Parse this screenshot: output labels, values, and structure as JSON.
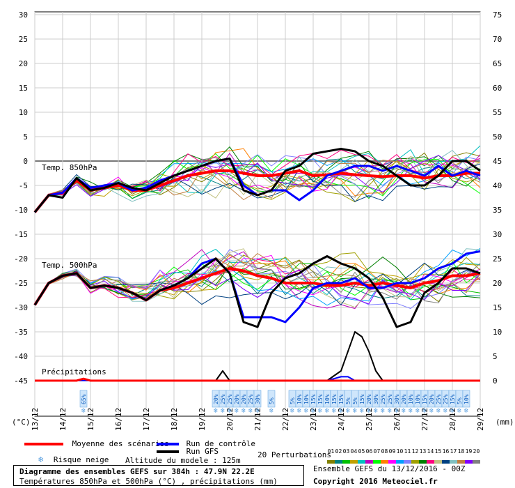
{
  "chart_data": {
    "type": "line",
    "title": "Diagramme des ensembles GEFS sur 384h : 47.9N 22.2E",
    "subtitle": "Températures 850hPa et 500hPa (°C) , précipitations (mm)",
    "left_axis_unit": "(°C)",
    "right_axis_unit": "(mm)",
    "left_ticks": [
      "30",
      "25",
      "20",
      "15",
      "10",
      "5",
      "0",
      "-5",
      "-10",
      "-15",
      "-20",
      "-25",
      "-30",
      "-35",
      "-40",
      "-45"
    ],
    "right_ticks": [
      "75",
      "70",
      "65",
      "60",
      "55",
      "50",
      "45",
      "40",
      "35",
      "30",
      "25",
      "20",
      "15",
      "10",
      "5",
      "0"
    ],
    "dates": [
      "13/12",
      "14/12",
      "15/12",
      "16/12",
      "17/12",
      "18/12",
      "19/12",
      "20/12",
      "21/12",
      "22/12",
      "23/12",
      "24/12",
      "25/12",
      "26/12",
      "27/12",
      "28/12",
      "29/12"
    ],
    "ylim_temp": [
      -45,
      30
    ],
    "ylim_precip": [
      0,
      75
    ],
    "x_hours": [
      0,
      384
    ],
    "panel_labels": {
      "t850": "Temp. 850hPa",
      "t500": "Temp. 500hPa",
      "precip": "Précipitations"
    },
    "snow_risk": [
      {
        "hour": 42,
        "pct": "65%"
      },
      {
        "hour": 156,
        "pct": "20%"
      },
      {
        "hour": 162,
        "pct": "25%"
      },
      {
        "hour": 168,
        "pct": "25%"
      },
      {
        "hour": 174,
        "pct": "20%"
      },
      {
        "hour": 180,
        "pct": "20%"
      },
      {
        "hour": 186,
        "pct": "25%"
      },
      {
        "hour": 192,
        "pct": "30%"
      },
      {
        "hour": 204,
        "pct": "5%"
      },
      {
        "hour": 222,
        "pct": "5%"
      },
      {
        "hour": 228,
        "pct": "10%"
      },
      {
        "hour": 234,
        "pct": "10%"
      },
      {
        "hour": 240,
        "pct": "15%"
      },
      {
        "hour": 246,
        "pct": "15%"
      },
      {
        "hour": 252,
        "pct": "10%"
      },
      {
        "hour": 258,
        "pct": "15%"
      },
      {
        "hour": 264,
        "pct": "15%"
      },
      {
        "hour": 270,
        "pct": "5%"
      },
      {
        "hour": 276,
        "pct": "5%"
      },
      {
        "hour": 282,
        "pct": "15%"
      },
      {
        "hour": 288,
        "pct": "20%"
      },
      {
        "hour": 294,
        "pct": "30%"
      },
      {
        "hour": 300,
        "pct": "25%"
      },
      {
        "hour": 306,
        "pct": "25%"
      },
      {
        "hour": 312,
        "pct": "30%"
      },
      {
        "hour": 318,
        "pct": "20%"
      },
      {
        "hour": 324,
        "pct": "10%"
      },
      {
        "hour": 330,
        "pct": "10%"
      },
      {
        "hour": 336,
        "pct": "15%"
      },
      {
        "hour": 342,
        "pct": "20%"
      },
      {
        "hour": 348,
        "pct": "25%"
      },
      {
        "hour": 354,
        "pct": "25%"
      },
      {
        "hour": 360,
        "pct": "15%"
      },
      {
        "hour": 366,
        "pct": "5%"
      },
      {
        "hour": 372,
        "pct": "10%"
      }
    ],
    "series": [
      {
        "name": "Moyenne des scénarios",
        "color": "#ff0000",
        "width": 4,
        "level": "t850",
        "x": [
          0,
          12,
          24,
          36,
          48,
          60,
          72,
          84,
          96,
          108,
          120,
          132,
          144,
          156,
          168,
          180,
          192,
          204,
          216,
          228,
          240,
          252,
          264,
          276,
          288,
          300,
          312,
          324,
          336,
          348,
          360,
          372,
          384
        ],
        "y": [
          -10.5,
          -7,
          -6.5,
          -4,
          -6,
          -5.5,
          -5,
          -6,
          -6,
          -5,
          -4,
          -3,
          -2.5,
          -2,
          -2,
          -2.5,
          -3,
          -3,
          -2.5,
          -2,
          -3,
          -2.8,
          -2.5,
          -2.8,
          -3,
          -3.2,
          -3,
          -3,
          -3.5,
          -3,
          -3,
          -2.5,
          -2.5
        ]
      },
      {
        "name": "Run de contrôle",
        "color": "#0000ff",
        "width": 3,
        "level": "t850",
        "x": [
          0,
          12,
          24,
          36,
          48,
          60,
          72,
          84,
          96,
          108,
          120,
          132,
          144,
          156,
          168,
          180,
          192,
          204,
          216,
          228,
          240,
          252,
          264,
          276,
          288,
          300,
          312,
          324,
          336,
          348,
          360,
          372,
          384
        ],
        "y": [
          -10.5,
          -7,
          -6.5,
          -3.5,
          -5.5,
          -5,
          -4.5,
          -6,
          -5.5,
          -4,
          -3,
          -2,
          -1,
          0,
          0.5,
          -5,
          -7,
          -6,
          -6,
          -8,
          -6,
          -3,
          -2,
          -1,
          -1,
          -2,
          -1,
          -2,
          -3,
          -1,
          -3,
          -2,
          -3
        ]
      },
      {
        "name": "Run GFS",
        "color": "#000000",
        "width": 3,
        "level": "t850",
        "x": [
          0,
          12,
          24,
          36,
          48,
          60,
          72,
          84,
          96,
          108,
          120,
          132,
          144,
          156,
          168,
          180,
          192,
          204,
          216,
          228,
          240,
          252,
          264,
          276,
          288,
          300,
          312,
          324,
          336,
          348,
          360,
          372,
          384
        ],
        "y": [
          -10.5,
          -7,
          -7.5,
          -3.5,
          -6,
          -5.5,
          -4.5,
          -5.5,
          -6,
          -4.5,
          -3,
          -2,
          -1,
          0,
          0.5,
          -6,
          -7,
          -6,
          -2,
          -1,
          1.5,
          2,
          2.5,
          2,
          0,
          -1,
          -3,
          -5,
          -5,
          -3,
          0,
          0,
          -2
        ]
      },
      {
        "name": "Moyenne des scénarios",
        "color": "#ff0000",
        "width": 4,
        "level": "t500",
        "x": [
          0,
          12,
          24,
          36,
          48,
          60,
          72,
          84,
          96,
          108,
          120,
          132,
          144,
          156,
          168,
          180,
          192,
          204,
          216,
          228,
          240,
          252,
          264,
          276,
          288,
          300,
          312,
          324,
          336,
          348,
          360,
          372,
          384
        ],
        "y": [
          -29.5,
          -25,
          -23.5,
          -23,
          -26,
          -25.5,
          -26,
          -27,
          -28.5,
          -26.5,
          -26,
          -25,
          -24,
          -23,
          -22,
          -22.5,
          -23.5,
          -24,
          -25,
          -25,
          -25,
          -25.5,
          -25.5,
          -25,
          -25.5,
          -25,
          -25.5,
          -26,
          -25,
          -24.5,
          -23.5,
          -23.5,
          -23
        ]
      },
      {
        "name": "Run de contrôle",
        "color": "#0000ff",
        "width": 3,
        "level": "t500",
        "x": [
          0,
          12,
          24,
          36,
          48,
          60,
          72,
          84,
          96,
          108,
          120,
          132,
          144,
          156,
          168,
          180,
          192,
          204,
          216,
          228,
          240,
          252,
          264,
          276,
          288,
          300,
          312,
          324,
          336,
          348,
          360,
          372,
          384
        ],
        "y": [
          -29.5,
          -25,
          -23.5,
          -23,
          -26,
          -25.5,
          -26,
          -27,
          -28.5,
          -26.5,
          -25.5,
          -24,
          -21,
          -20,
          -23,
          -32,
          -32,
          -32,
          -33,
          -30,
          -26,
          -25,
          -25,
          -24,
          -26,
          -26,
          -25,
          -25,
          -24,
          -22,
          -21,
          -19,
          -18.5
        ]
      },
      {
        "name": "Run GFS",
        "color": "#000000",
        "width": 3,
        "level": "t500",
        "x": [
          0,
          12,
          24,
          36,
          48,
          60,
          72,
          84,
          96,
          108,
          120,
          132,
          144,
          156,
          168,
          180,
          192,
          204,
          216,
          228,
          240,
          252,
          264,
          276,
          288,
          300,
          312,
          324,
          336,
          348,
          360,
          372,
          384
        ],
        "y": [
          -29.5,
          -25,
          -23.5,
          -23,
          -26,
          -25.5,
          -26,
          -27,
          -28.5,
          -26.5,
          -25.5,
          -24,
          -22,
          -20,
          -23,
          -33,
          -34,
          -27,
          -24,
          -23,
          -21,
          -19.5,
          -21,
          -22,
          -24,
          -28,
          -34,
          -33,
          -27,
          -25,
          -22,
          -22,
          -23
        ]
      },
      {
        "name": "Run GFS",
        "color": "#000000",
        "width": 2,
        "level": "precip",
        "x": [
          0,
          156,
          162,
          168,
          174,
          180,
          240,
          252,
          264,
          270,
          276,
          282,
          288,
          294,
          300,
          384
        ],
        "y": [
          0,
          0,
          2,
          0,
          0,
          0,
          0,
          0,
          2,
          6,
          10,
          9,
          6,
          2,
          0,
          0
        ]
      },
      {
        "name": "Run de contrôle",
        "color": "#0000ff",
        "width": 2,
        "level": "precip",
        "x": [
          0,
          252,
          264,
          270,
          276,
          384
        ],
        "y": [
          0,
          0,
          0.8,
          0.8,
          0,
          0
        ]
      },
      {
        "name": "Moyenne des scénarios",
        "color": "#ff0000",
        "width": 3,
        "level": "precip",
        "x": [
          0,
          24,
          36,
          42,
          48,
          384
        ],
        "y": [
          0,
          0,
          0,
          0.4,
          0,
          0
        ]
      }
    ],
    "legend": [
      {
        "label": "Moyenne des scénarios",
        "color": "#ff0000"
      },
      {
        "label": "Run de contrôle",
        "color": "#0000ff"
      },
      {
        "label": "Run GFS",
        "color": "#000000"
      }
    ],
    "snow_legend": "Risque neige",
    "altitude": "Altitude du modele : 125m",
    "perturbations_label": "20 Perturbations",
    "perturbation_ids": [
      "01",
      "02",
      "03",
      "04",
      "05",
      "06",
      "07",
      "08",
      "09",
      "10",
      "11",
      "12",
      "13",
      "14",
      "15",
      "16",
      "17",
      "18",
      "19",
      "20"
    ],
    "perturbation_colors": [
      "#808000",
      "#008080",
      "#00c000",
      "#c0a000",
      "#00c0c0",
      "#c000c0",
      "#00ff00",
      "#ff8000",
      "#ff00ff",
      "#00a0ff",
      "#8080ff",
      "#a0a000",
      "#008000",
      "#ff0080",
      "#c0c080",
      "#004080",
      "#80c0c0",
      "#c08040",
      "#8000ff",
      "#808080"
    ],
    "ensemble_label": "Ensemble GEFS du 13/12/2016 - 00Z",
    "copyright": "Copyright 2016 Meteociel.fr"
  }
}
